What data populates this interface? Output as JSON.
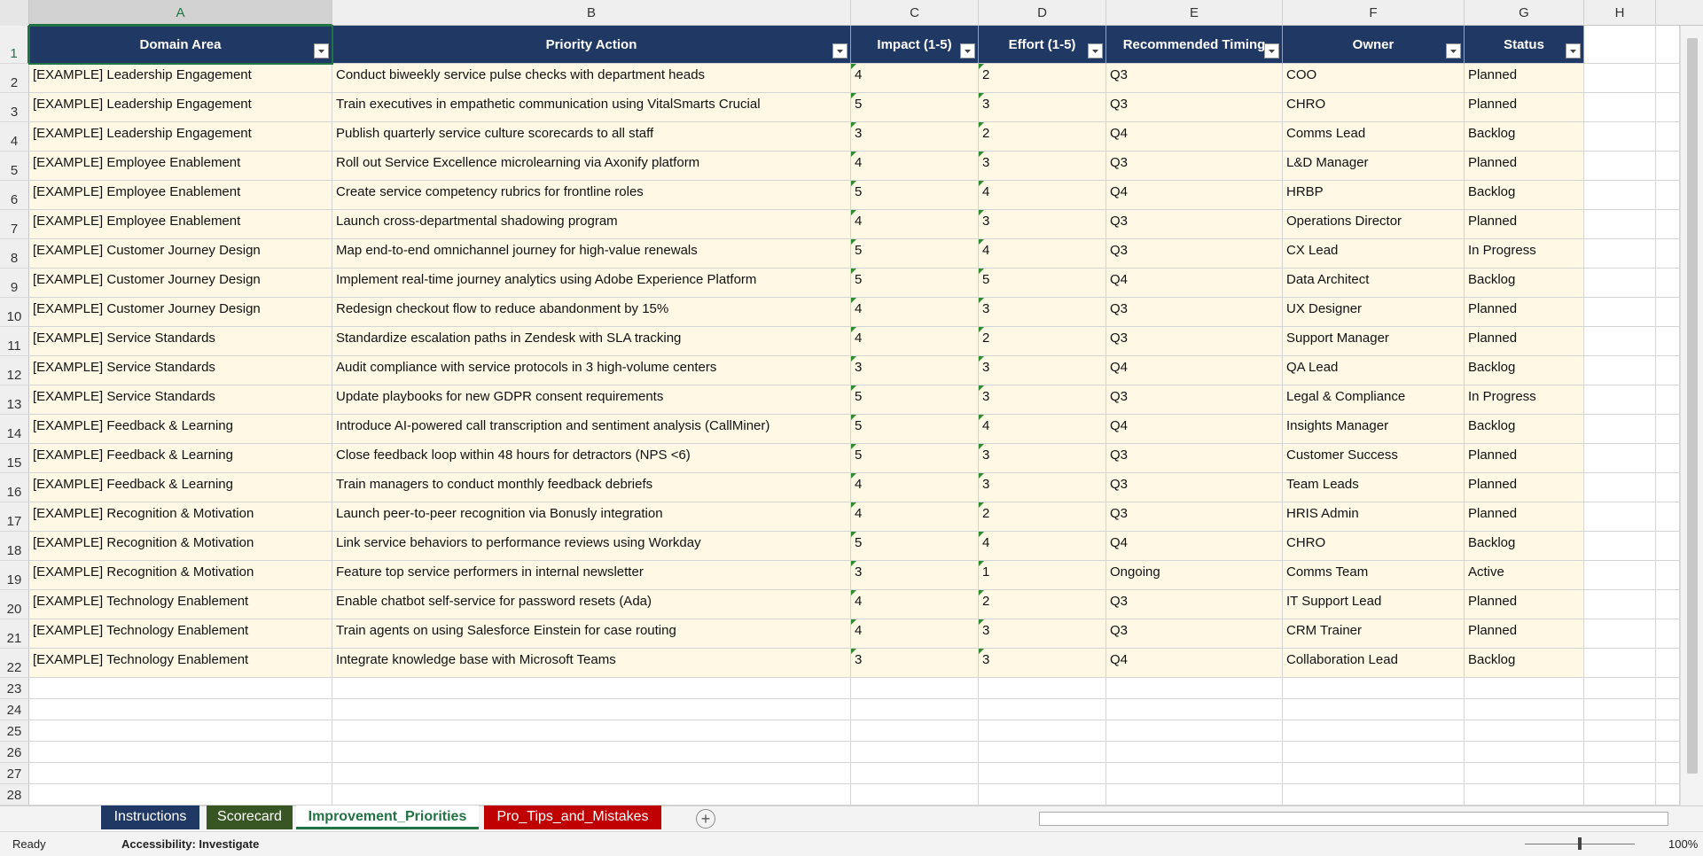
{
  "column_letters": [
    "A",
    "B",
    "C",
    "D",
    "E",
    "F",
    "G",
    "H"
  ],
  "row_numbers": [
    1,
    2,
    3,
    4,
    5,
    6,
    7,
    8,
    9,
    10,
    11,
    12,
    13,
    14,
    15,
    16,
    17,
    18,
    19,
    20,
    21,
    22,
    23,
    24,
    25,
    26,
    27,
    28
  ],
  "table": {
    "headers": [
      "Domain Area",
      "Priority Action",
      "Impact (1-5)",
      "Effort (1-5)",
      "Recommended Timing",
      "Owner",
      "Status"
    ],
    "rows": [
      [
        "[EXAMPLE] Leadership Engagement",
        "Conduct biweekly service pulse checks with department heads",
        4,
        2,
        "Q3",
        "COO",
        "Planned"
      ],
      [
        "[EXAMPLE] Leadership Engagement",
        "Train executives in empathetic communication using VitalSmarts Crucial",
        5,
        3,
        "Q3",
        "CHRO",
        "Planned"
      ],
      [
        "[EXAMPLE] Leadership Engagement",
        "Publish quarterly service culture scorecards to all staff",
        3,
        2,
        "Q4",
        "Comms Lead",
        "Backlog"
      ],
      [
        "[EXAMPLE] Employee Enablement",
        "Roll out Service Excellence microlearning via Axonify platform",
        4,
        3,
        "Q3",
        "L&D Manager",
        "Planned"
      ],
      [
        "[EXAMPLE] Employee Enablement",
        "Create service competency rubrics for frontline roles",
        5,
        4,
        "Q4",
        "HRBP",
        "Backlog"
      ],
      [
        "[EXAMPLE] Employee Enablement",
        "Launch cross-departmental shadowing program",
        4,
        3,
        "Q3",
        "Operations Director",
        "Planned"
      ],
      [
        "[EXAMPLE] Customer Journey Design",
        "Map end-to-end omnichannel journey for high-value renewals",
        5,
        4,
        "Q3",
        "CX Lead",
        "In Progress"
      ],
      [
        "[EXAMPLE] Customer Journey Design",
        "Implement real-time journey analytics using Adobe Experience Platform",
        5,
        5,
        "Q4",
        "Data Architect",
        "Backlog"
      ],
      [
        "[EXAMPLE] Customer Journey Design",
        "Redesign checkout flow to reduce abandonment by 15%",
        4,
        3,
        "Q3",
        "UX Designer",
        "Planned"
      ],
      [
        "[EXAMPLE] Service Standards",
        "Standardize escalation paths in Zendesk with SLA tracking",
        4,
        2,
        "Q3",
        "Support Manager",
        "Planned"
      ],
      [
        "[EXAMPLE] Service Standards",
        "Audit compliance with service protocols in 3 high-volume centers",
        3,
        3,
        "Q4",
        "QA Lead",
        "Backlog"
      ],
      [
        "[EXAMPLE] Service Standards",
        "Update playbooks for new GDPR consent requirements",
        5,
        3,
        "Q3",
        "Legal & Compliance",
        "In Progress"
      ],
      [
        "[EXAMPLE] Feedback & Learning",
        "Introduce AI-powered call transcription and sentiment analysis (CallMiner)",
        5,
        4,
        "Q4",
        "Insights Manager",
        "Backlog"
      ],
      [
        "[EXAMPLE] Feedback & Learning",
        "Close feedback loop within 48 hours for detractors (NPS <6)",
        5,
        3,
        "Q3",
        "Customer Success",
        "Planned"
      ],
      [
        "[EXAMPLE] Feedback & Learning",
        "Train managers to conduct monthly feedback debriefs",
        4,
        3,
        "Q3",
        "Team Leads",
        "Planned"
      ],
      [
        "[EXAMPLE] Recognition & Motivation",
        "Launch peer-to-peer recognition via Bonusly integration",
        4,
        2,
        "Q3",
        "HRIS Admin",
        "Planned"
      ],
      [
        "[EXAMPLE] Recognition & Motivation",
        "Link service behaviors to performance reviews using Workday",
        5,
        4,
        "Q4",
        "CHRO",
        "Backlog"
      ],
      [
        "[EXAMPLE] Recognition & Motivation",
        "Feature top service performers in internal newsletter",
        3,
        1,
        "Ongoing",
        "Comms Team",
        "Active"
      ],
      [
        "[EXAMPLE] Technology Enablement",
        "Enable chatbot self-service for password resets (Ada)",
        4,
        2,
        "Q3",
        "IT Support Lead",
        "Planned"
      ],
      [
        "[EXAMPLE] Technology Enablement",
        "Train agents on using Salesforce Einstein for case routing",
        4,
        3,
        "Q3",
        "CRM Trainer",
        "Planned"
      ],
      [
        "[EXAMPLE] Technology Enablement",
        "Integrate knowledge base with Microsoft Teams",
        3,
        3,
        "Q4",
        "Collaboration Lead",
        "Backlog"
      ]
    ]
  },
  "sheet_tabs": [
    "Instructions",
    "Scorecard",
    "Improvement_Priorities",
    "Pro_Tips_and_Mistakes"
  ],
  "status_bar": {
    "mode": "Ready",
    "accessibility": "Accessibility: Investigate",
    "zoom": "100%"
  }
}
